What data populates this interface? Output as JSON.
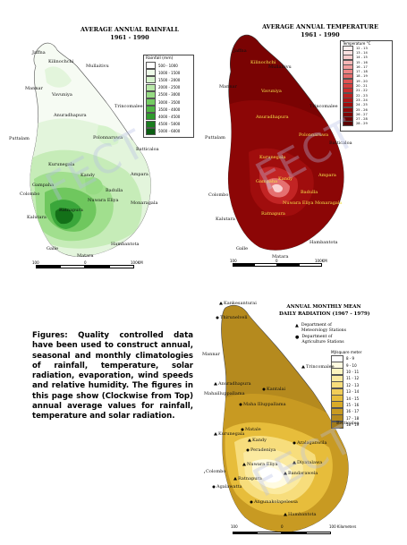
{
  "rainfall": {
    "title_line1": "AVERAGE ANNUAL RAINFALL",
    "title_line2": "1961 - 1990",
    "legend_title": "Rainfall (mm)",
    "legend": [
      {
        "label": "500 - 1000",
        "color": "#ffffff"
      },
      {
        "label": "1000 - 1500",
        "color": "#eefae9"
      },
      {
        "label": "1500 - 2000",
        "color": "#d6f3cc"
      },
      {
        "label": "2000 - 2500",
        "color": "#b8e8a8"
      },
      {
        "label": "2500 - 3000",
        "color": "#96db83"
      },
      {
        "label": "3000 - 3500",
        "color": "#74cc62"
      },
      {
        "label": "3500 - 4000",
        "color": "#4fb744"
      },
      {
        "label": "4000 - 4500",
        "color": "#2f9b2d"
      },
      {
        "label": "4500 - 5000",
        "color": "#1a7d1f"
      },
      {
        "label": "5000 - 6000",
        "color": "#0b5e12"
      }
    ],
    "places": [
      "Jaffna",
      "Kilinochchi",
      "Mullaitivu",
      "Mannar",
      "Vavuniya",
      "Trincomalee",
      "Anuradhapura",
      "Puttalam",
      "Polonnaruwa",
      "Batticaloa",
      "Kurunegala",
      "Kandy",
      "Ampara",
      "Colombo",
      "Gampaha",
      "Nuwara Eliya",
      "Badulla",
      "Monaragala",
      "Kalutara",
      "Ratnapura",
      "Hambantota",
      "Galle",
      "Matara"
    ],
    "scale": [
      "100",
      "0",
      "100KM"
    ]
  },
  "temperature": {
    "title_line1": "AVERAGE ANNUAL TEMPERATURE",
    "title_line2": "1961 - 1990",
    "legend_title": "Temperature °C",
    "legend": [
      {
        "label": "12 - 13",
        "color": "#fff2f2"
      },
      {
        "label": "13 - 14",
        "color": "#fde0e0"
      },
      {
        "label": "14 - 15",
        "color": "#facccc"
      },
      {
        "label": "15 - 16",
        "color": "#f6b6b6"
      },
      {
        "label": "16 - 17",
        "color": "#f29e9e"
      },
      {
        "label": "17 - 18",
        "color": "#ec8585"
      },
      {
        "label": "18 - 19",
        "color": "#e66c6c"
      },
      {
        "label": "19 - 20",
        "color": "#df5555"
      },
      {
        "label": "20 - 21",
        "color": "#d73f3f"
      },
      {
        "label": "21 - 22",
        "color": "#cc2e2e"
      },
      {
        "label": "22 - 23",
        "color": "#bf2020"
      },
      {
        "label": "23 - 24",
        "color": "#b01616"
      },
      {
        "label": "24 - 25",
        "color": "#a00d0d"
      },
      {
        "label": "25 - 26",
        "color": "#8f0707"
      },
      {
        "label": "26 - 27",
        "color": "#7e0404"
      },
      {
        "label": "27 - 28",
        "color": "#6d0202"
      },
      {
        "label": "28 - 29",
        "color": "#5b0000"
      }
    ],
    "places_outside": [
      "Jaffna",
      "Mannar",
      "Puttalam",
      "Colombo",
      "Kalutara",
      "Galle",
      "Matara",
      "Hambantota",
      "Trincomalee",
      "Batticaloa",
      "Mullaitivu"
    ],
    "places_inside": [
      "Kilinochchi",
      "Vavuniya",
      "Anuradhapura",
      "Polonnaruwa",
      "Kurunegala",
      "Gampaha",
      "Kandy",
      "Nuwara Eliya",
      "Badulla",
      "Ratnapura",
      "Monaragala",
      "Ampara"
    ],
    "scale": [
      "100",
      "0",
      "100KM"
    ]
  },
  "radiation": {
    "title_line1": "ANNUAL MONTHLY MEAN",
    "title_line2": "DAILY RADIATION (1967 - 1979)",
    "key": [
      {
        "symbol": "triangle",
        "label_lines": [
          "Department of",
          "Meteorology Stations"
        ]
      },
      {
        "symbol": "dot",
        "label_lines": [
          "Department of",
          "Agriculture Stations"
        ]
      }
    ],
    "legend_title": "MJ/square meter",
    "legend": [
      {
        "label": "8 - 9",
        "color": "#ffffff"
      },
      {
        "label": "9 - 10",
        "color": "#fffbe0"
      },
      {
        "label": "10 - 11",
        "color": "#fdf4bf"
      },
      {
        "label": "11 - 12",
        "color": "#fbeaa0"
      },
      {
        "label": "12 - 13",
        "color": "#f7dd7c"
      },
      {
        "label": "13 - 14",
        "color": "#f1cd58"
      },
      {
        "label": "14 - 15",
        "color": "#e7bd3b"
      },
      {
        "label": "15 - 16",
        "color": "#d9ab29"
      },
      {
        "label": "16 - 17",
        "color": "#c89a22"
      },
      {
        "label": "17 - 18",
        "color": "#b58a1e"
      },
      {
        "label": "18 - 19",
        "color": "#a17a1a"
      }
    ],
    "places": [
      "Kankesanturai",
      "Thirunelveli",
      "Mannar",
      "Trincomalee",
      "Anuradhapura",
      "Mahailluppallama",
      "Kantalai",
      "Batticaloa",
      "Maha Illuppallama",
      "Kurunegala",
      "Matale",
      "Kandy",
      "Aralaganwila",
      "Peradeniya",
      "Bandarawela",
      "Colombo",
      "Nuwara Eliya",
      "Diyatalawa",
      "Ratnapura",
      "Agalawatta",
      "Angunakolapelessa",
      "Hambantota"
    ],
    "scale": [
      "100",
      "0",
      "100 Kilometers"
    ]
  },
  "caption": "Figures: Quality controlled data have been used to construct annual, seasonal and monthly climatologies of rainfall, temperature, solar radiation, evaporation, wind speeds and relative humidity. The figures in this page show (Clockwise from Top) annual average values for rainfall, temperature and solar radiation.",
  "watermark": "FECT"
}
